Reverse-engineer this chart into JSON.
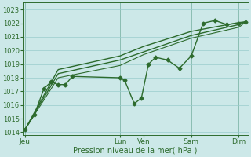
{
  "bg_color": "#cce8e8",
  "grid_color": "#99cccc",
  "line_color": "#2d6b2d",
  "ylim": [
    1013.8,
    1023.5
  ],
  "yticks": [
    1014,
    1015,
    1016,
    1017,
    1018,
    1019,
    1020,
    1021,
    1022,
    1023
  ],
  "xlabel": "Pression niveau de la mer( hPa )",
  "xtick_labels": [
    "Jeu",
    "Lun",
    "Ven",
    "Sam",
    "Dim"
  ],
  "xtick_positions": [
    0,
    40,
    50,
    70,
    90
  ],
  "xlim": [
    -1,
    94
  ],
  "vlines": [
    0,
    40,
    50,
    70,
    90
  ],
  "line_wiggly": {
    "x": [
      0,
      4,
      8,
      11,
      14,
      17,
      20,
      40,
      42,
      46,
      49,
      52,
      55,
      60,
      65,
      70,
      75,
      80,
      85,
      90,
      93
    ],
    "y": [
      1014.2,
      1015.3,
      1017.2,
      1017.7,
      1017.5,
      1017.5,
      1018.1,
      1018.0,
      1017.8,
      1016.1,
      1016.5,
      1019.0,
      1019.5,
      1019.3,
      1018.7,
      1019.6,
      1022.0,
      1022.2,
      1021.9,
      1022.0,
      1022.1
    ],
    "marker": "D",
    "markersize": 2.5,
    "linewidth": 1.0
  },
  "line_smooth1": {
    "x": [
      0,
      14,
      40,
      50,
      70,
      90,
      93
    ],
    "y": [
      1014.2,
      1018.3,
      1019.3,
      1019.9,
      1021.1,
      1021.9,
      1022.1
    ],
    "linewidth": 1.0
  },
  "line_smooth2": {
    "x": [
      0,
      14,
      40,
      50,
      70,
      90,
      93
    ],
    "y": [
      1014.2,
      1018.6,
      1019.6,
      1020.3,
      1021.4,
      1022.05,
      1022.1
    ],
    "linewidth": 1.0
  },
  "line_smooth3": {
    "x": [
      0,
      14,
      40,
      50,
      70,
      90,
      93
    ],
    "y": [
      1014.2,
      1018.0,
      1018.9,
      1019.7,
      1020.9,
      1021.7,
      1022.1
    ],
    "linewidth": 0.8
  }
}
